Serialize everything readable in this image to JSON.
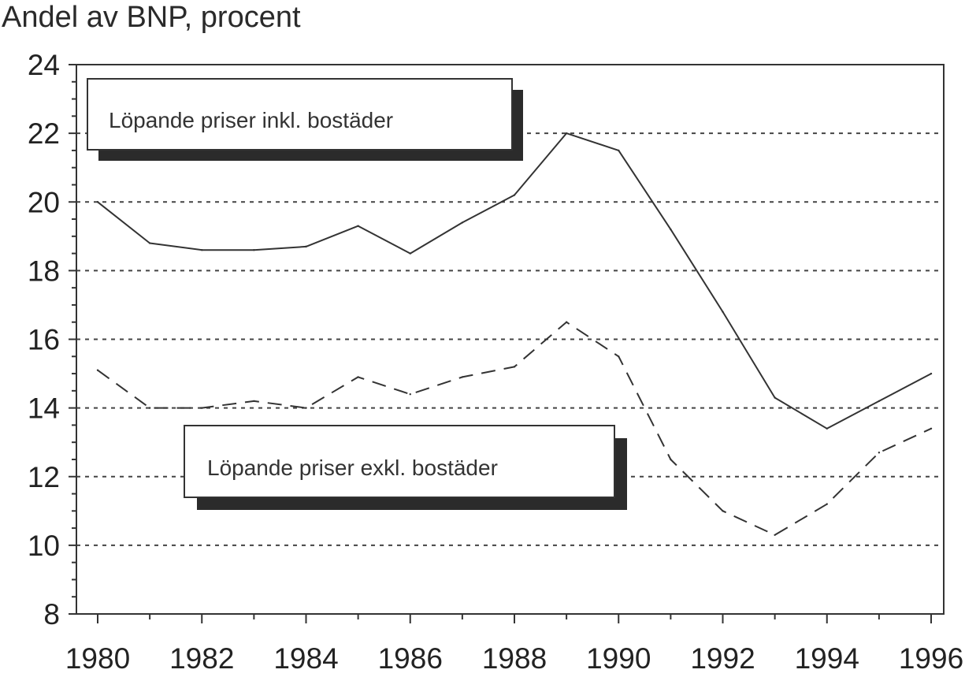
{
  "chart_data": {
    "type": "line",
    "title": "",
    "ylabel": "Andel av BNP, procent",
    "xlabel": "",
    "ylim": [
      8,
      24
    ],
    "xlim": [
      1980,
      1996
    ],
    "y_ticks": [
      "8",
      "10",
      "12",
      "14",
      "16",
      "18",
      "20",
      "22",
      "24"
    ],
    "x_ticks": [
      "1980",
      "1982",
      "1984",
      "1986",
      "1988",
      "1990",
      "1992",
      "1994",
      "1996"
    ],
    "gridlines_y": [
      10,
      12,
      14,
      16,
      18,
      20,
      22
    ],
    "grid": "horizontal dashed",
    "x": [
      1980,
      1981,
      1982,
      1983,
      1984,
      1985,
      1986,
      1987,
      1988,
      1989,
      1990,
      1991,
      1992,
      1993,
      1994,
      1995,
      1996
    ],
    "series": [
      {
        "name": "Löpande priser inkl. bostäder",
        "style": "solid",
        "values": [
          20.0,
          18.8,
          18.6,
          18.6,
          18.7,
          19.3,
          18.5,
          19.4,
          20.2,
          22.0,
          21.5,
          19.2,
          16.8,
          14.3,
          13.4,
          14.2,
          15.0
        ]
      },
      {
        "name": "Löpande priser exkl. bostäder",
        "style": "dashed",
        "values": [
          15.1,
          14.0,
          14.0,
          14.2,
          14.0,
          14.9,
          14.4,
          14.9,
          15.2,
          16.5,
          15.5,
          12.5,
          11.0,
          10.3,
          11.2,
          12.7,
          13.4
        ]
      }
    ],
    "legend_placement": "inside, as labelled boxes near each line"
  },
  "colors": {
    "line": "#333333",
    "grid": "#444444",
    "box_shadow": "#2b2b2b",
    "background": "#ffffff"
  }
}
